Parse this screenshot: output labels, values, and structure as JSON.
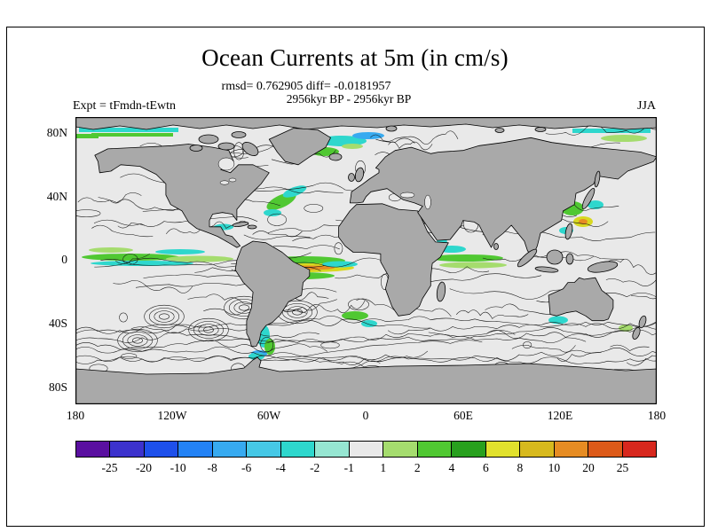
{
  "header": {
    "title": "Ocean Currents at 5m (in cm/s)",
    "stats_line": "rmsd= 0.762905 diff= -0.0181957",
    "period_line": "2956kyr BP - 2956kyr BP",
    "experiment_label": "Expt = tFmdn-tEwtn",
    "season_label": "JJA"
  },
  "map": {
    "lat_labels": [
      "80N",
      "40N",
      "0",
      "40S",
      "80S"
    ],
    "lon_labels": [
      "180",
      "120W",
      "60W",
      "0",
      "60E",
      "120E",
      "180"
    ],
    "land_color": "#a9a9a9",
    "ocean_color": "#e9e9e9"
  },
  "colorbar": {
    "tick_labels": [
      "-25",
      "-20",
      "-10",
      "-8",
      "-6",
      "-4",
      "-2",
      "-1",
      "1",
      "2",
      "4",
      "6",
      "8",
      "10",
      "20",
      "25"
    ],
    "segment_colors": [
      "#5a0fa0",
      "#3c32cd",
      "#1e50eb",
      "#2382f5",
      "#37aaf0",
      "#46c8e6",
      "#2ed7cd",
      "#96e6d2",
      "#e9e9e9",
      "#a5dc6e",
      "#50c832",
      "#28a01e",
      "#e1e12d",
      "#d7b91e",
      "#e68c23",
      "#dc5a19",
      "#d7281e"
    ]
  },
  "chart_data": {
    "type": "heatmap",
    "title": "Ocean Currents at 5m (in cm/s)",
    "units": "cm/s",
    "depth": "5m",
    "statistics": {
      "rmsd": 0.762905,
      "diff": -0.0181957
    },
    "comparison": "2956kyr BP - 2956kyr BP",
    "experiment": "tFmdn-tEwtn",
    "season": "JJA",
    "projection": "equirectangular world map with contour lines of current-speed difference",
    "x_axis": {
      "label": "longitude",
      "ticks": [
        "180",
        "120W",
        "60W",
        "0",
        "60E",
        "120E",
        "180"
      ]
    },
    "y_axis": {
      "label": "latitude",
      "ticks": [
        "80N",
        "40N",
        "0",
        "40S",
        "80S"
      ]
    },
    "colorbar": {
      "levels": [
        -25,
        -20,
        -10,
        -8,
        -6,
        -4,
        -2,
        -1,
        1,
        2,
        4,
        6,
        8,
        10,
        20,
        25
      ],
      "colors": [
        "#5a0fa0",
        "#3c32cd",
        "#1e50eb",
        "#2382f5",
        "#37aaf0",
        "#46c8e6",
        "#2ed7cd",
        "#96e6d2",
        "#e9e9e9",
        "#a5dc6e",
        "#50c832",
        "#28a01e",
        "#e1e12d",
        "#d7b91e",
        "#e68c23",
        "#dc5a19",
        "#d7281e"
      ],
      "position": "bottom"
    },
    "notable_features": "positive (green/yellow) and negative (cyan/blue) anomalies concentrated along equatorial currents, western boundary currents and high-latitude bands"
  }
}
